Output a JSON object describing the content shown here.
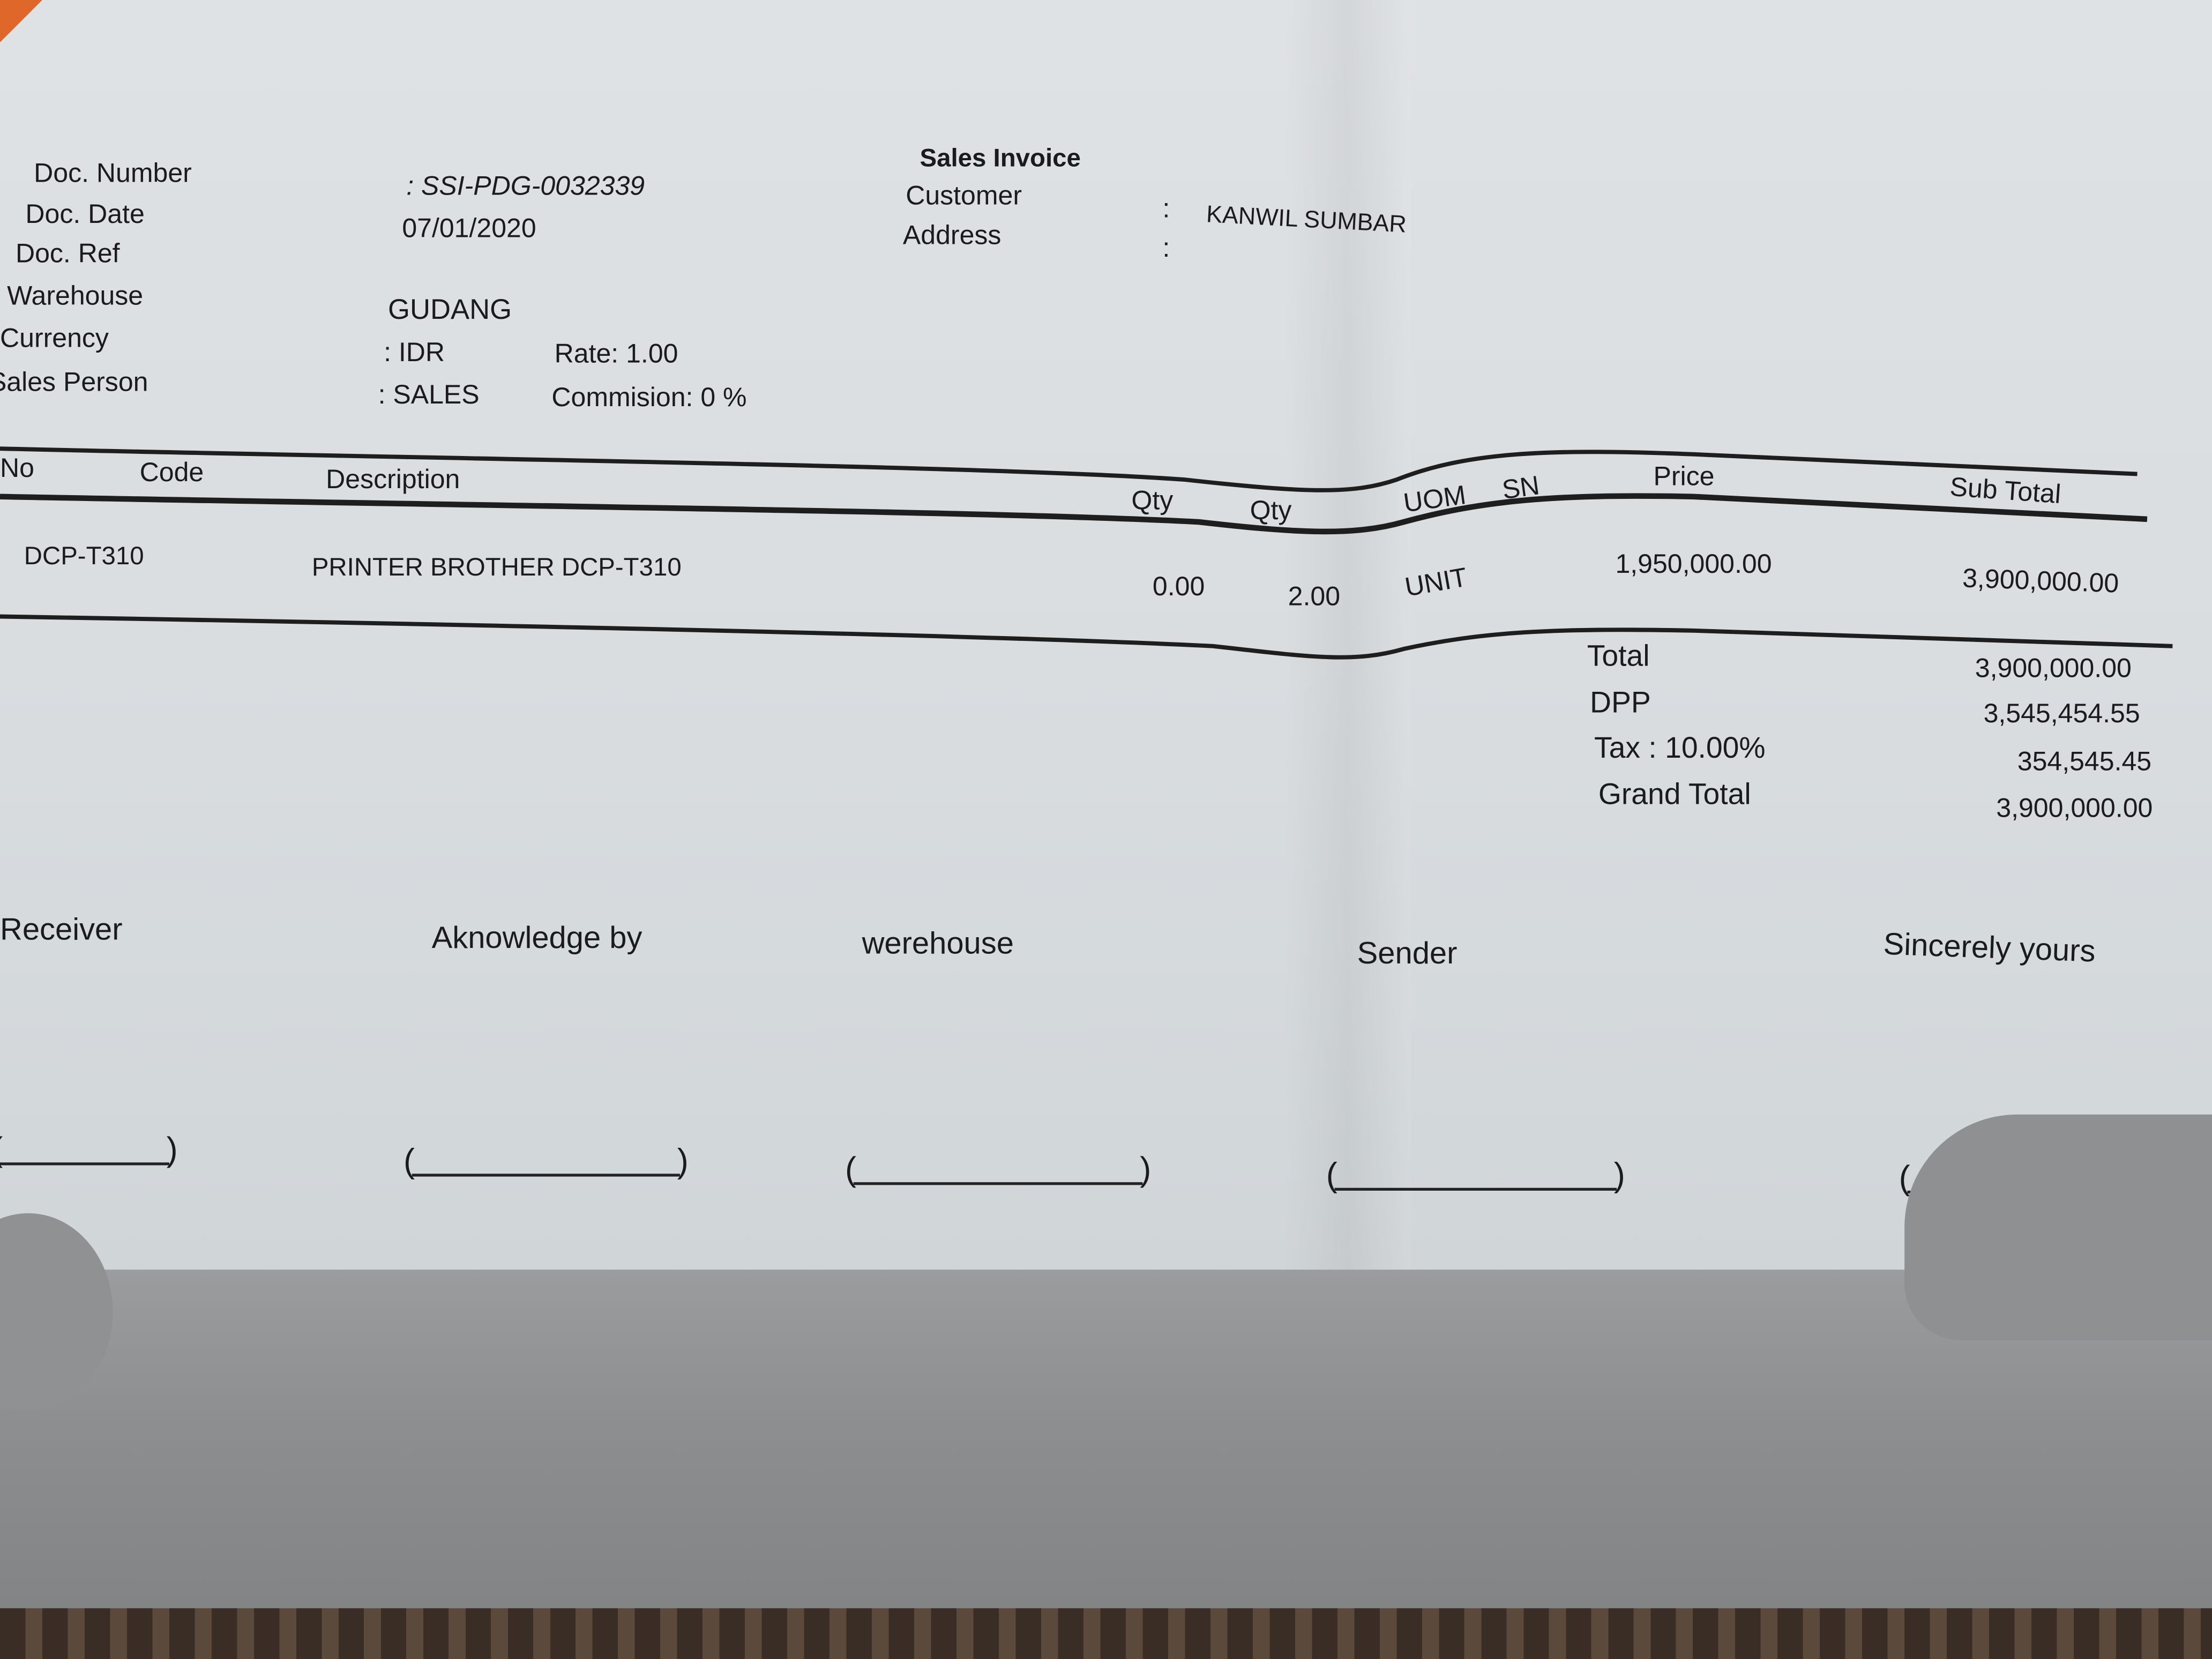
{
  "document": {
    "title": "Sales Invoice",
    "header_left": {
      "doc_number_label": "Doc. Number",
      "doc_number_value": ": SSI-PDG-0032339",
      "doc_date_label": "Doc. Date",
      "doc_date_value": "07/01/2020",
      "doc_ref_label": "Doc. Ref",
      "warehouse_label": "Warehouse",
      "warehouse_value": "GUDANG",
      "currency_label": "Currency",
      "currency_value": ": IDR",
      "rate": "Rate: 1.00",
      "sales_person_label": "Sales Person",
      "sales_person_value": ": SALES",
      "commission": "Commision: 0 %"
    },
    "header_right": {
      "customer_label": "Customer",
      "customer_sep": ":",
      "customer_value": "KANWIL SUMBAR",
      "address_label": "Address",
      "address_sep": ":"
    },
    "table": {
      "columns": [
        "No",
        "Code",
        "Description",
        "Qty",
        "Qty",
        "UOM",
        "SN",
        "Price",
        "Sub Total"
      ],
      "rows": [
        {
          "code": "DCP-T310",
          "description": "PRINTER BROTHER DCP-T310",
          "qty1": "0.00",
          "qty2": "2.00",
          "uom": "UNIT",
          "sn": "",
          "price": "1,950,000.00",
          "subtotal": "3,900,000.00"
        }
      ]
    },
    "totals": {
      "total_label": "Total",
      "total_value": "3,900,000.00",
      "dpp_label": "DPP",
      "dpp_value": "3,545,454.55",
      "tax_label": "Tax : 10.00%",
      "tax_value": "354,545.45",
      "grand_total_label": "Grand Total",
      "grand_total_value": "3,900,000.00"
    },
    "signatures": [
      "Receiver",
      "Aknowledge by",
      "werehouse",
      "Sender",
      "Sincerely yours"
    ]
  }
}
